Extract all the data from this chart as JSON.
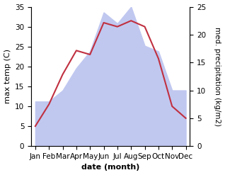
{
  "months": [
    "Jan",
    "Feb",
    "Mar",
    "Apr",
    "May",
    "Jun",
    "Jul",
    "Aug",
    "Sep",
    "Oct",
    "Nov",
    "Dec"
  ],
  "temperature": [
    5,
    10.5,
    18,
    24,
    23,
    31,
    30,
    31.5,
    30,
    22,
    10,
    7
  ],
  "precipitation": [
    8,
    8,
    10,
    14,
    17,
    24,
    22,
    25,
    18,
    17,
    10,
    10
  ],
  "temp_color": "#c03040",
  "precip_fill_color": "#c0c8f0",
  "bg_color": "#ffffff",
  "ylabel_left": "max temp (C)",
  "ylabel_right": "med. precipitation (kg/m2)",
  "xlabel": "date (month)",
  "ylim_left": [
    0,
    35
  ],
  "ylim_right": [
    0,
    25
  ],
  "yticks_left": [
    0,
    5,
    10,
    15,
    20,
    25,
    30,
    35
  ],
  "yticks_right": [
    0,
    5,
    10,
    15,
    20,
    25
  ],
  "label_fontsize": 8,
  "tick_fontsize": 7.5
}
